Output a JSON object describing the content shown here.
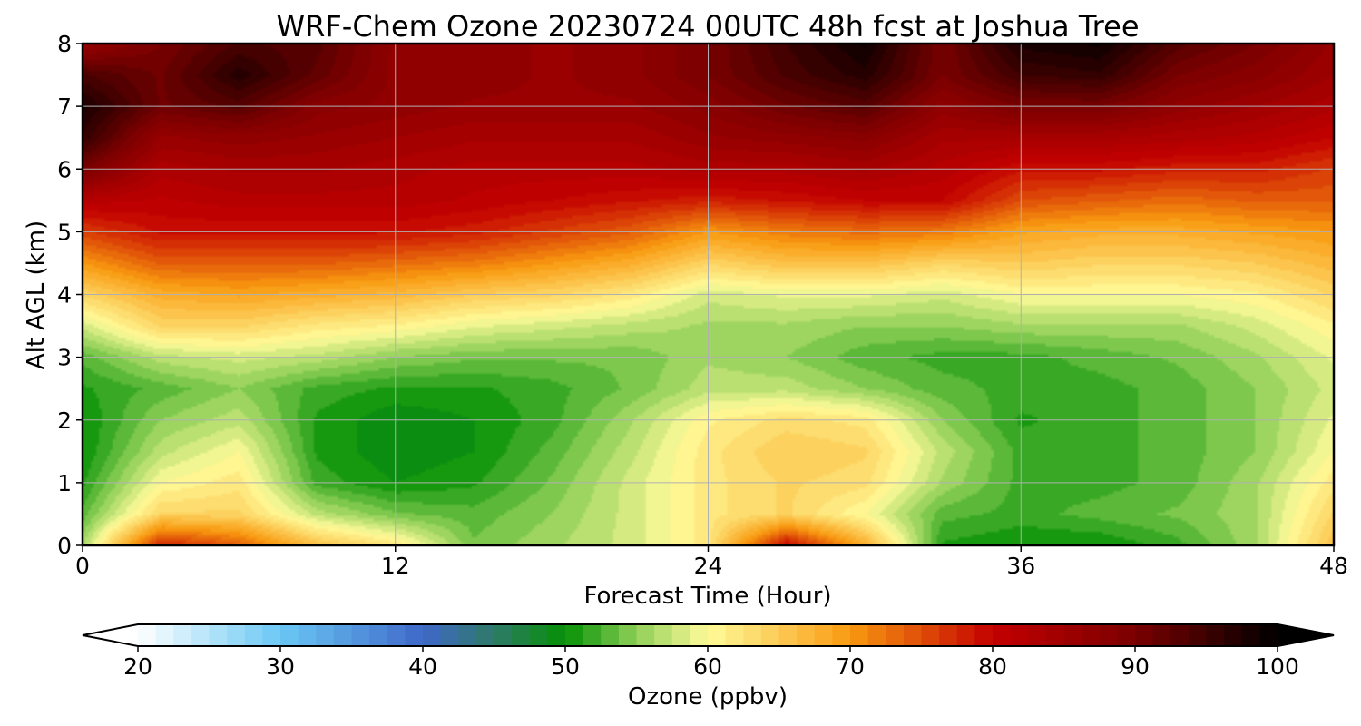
{
  "chart_data": {
    "type": "heatmap",
    "title": "WRF-Chem Ozone  20230724 00UTC 48h fcst at Joshua Tree",
    "xlabel": "Forecast Time (Hour)",
    "ylabel": "Alt AGL (km)",
    "xlim": [
      0,
      48
    ],
    "ylim": [
      0,
      8
    ],
    "xticks": [
      0,
      12,
      24,
      36,
      48
    ],
    "yticks": [
      0,
      1,
      2,
      3,
      4,
      5,
      6,
      7,
      8
    ],
    "grid": true,
    "colorbar": {
      "label": "Ozone  (ppbv)",
      "range": [
        20,
        100
      ],
      "ticks": [
        20,
        30,
        40,
        50,
        60,
        70,
        80,
        90,
        100
      ],
      "extend": "both",
      "stops": [
        {
          "v": 20,
          "c": "#ffffff"
        },
        {
          "v": 30,
          "c": "#6ac8f5"
        },
        {
          "v": 40,
          "c": "#3f68c8"
        },
        {
          "v": 45,
          "c": "#2f7a68"
        },
        {
          "v": 50,
          "c": "#059005"
        },
        {
          "v": 55,
          "c": "#8fd058"
        },
        {
          "v": 60,
          "c": "#fffb9a"
        },
        {
          "v": 70,
          "c": "#f99a10"
        },
        {
          "v": 80,
          "c": "#c40000"
        },
        {
          "v": 90,
          "c": "#7a0000"
        },
        {
          "v": 100,
          "c": "#000000"
        }
      ],
      "under_color": "#ffffff",
      "over_color": "#000000"
    },
    "x": [
      0,
      3,
      6,
      9,
      12,
      15,
      18,
      21,
      24,
      27,
      30,
      33,
      36,
      39,
      42,
      45,
      48
    ],
    "y": [
      0,
      0.5,
      1,
      1.5,
      2,
      2.5,
      3,
      3.5,
      4,
      4.5,
      5,
      5.5,
      6,
      6.5,
      7,
      7.5,
      8
    ],
    "z": [
      [
        56,
        78,
        74,
        66,
        62,
        54,
        56,
        58,
        62,
        80,
        68,
        51,
        50,
        50,
        52,
        56,
        66
      ],
      [
        53,
        64,
        64,
        57,
        54,
        53,
        55,
        58,
        62,
        64,
        60,
        53,
        52,
        53,
        54,
        56,
        64
      ],
      [
        51,
        60,
        62,
        52,
        50,
        51,
        54,
        58,
        62,
        64,
        63,
        56,
        52,
        52,
        53,
        56,
        62
      ],
      [
        50,
        57,
        60,
        51,
        49,
        50,
        53,
        57,
        62,
        65,
        64,
        57,
        52,
        52,
        53,
        55,
        60
      ],
      [
        50,
        55,
        57,
        51,
        49,
        50,
        52,
        56,
        61,
        63,
        62,
        55,
        51,
        52,
        53,
        55,
        59
      ],
      [
        51,
        53,
        55,
        52,
        51,
        51,
        52,
        54,
        57,
        57,
        55,
        53,
        52,
        52,
        53,
        55,
        58
      ],
      [
        53,
        57,
        58,
        57,
        55,
        54,
        54,
        54,
        56,
        55,
        53,
        52,
        52,
        53,
        54,
        56,
        59
      ],
      [
        58,
        64,
        64,
        62,
        61,
        59,
        58,
        57,
        56,
        56,
        55,
        55,
        56,
        56,
        56,
        58,
        61
      ],
      [
        64,
        68,
        69,
        68,
        67,
        65,
        64,
        62,
        58,
        59,
        59,
        58,
        60,
        60,
        60,
        61,
        64
      ],
      [
        70,
        74,
        74,
        74,
        73,
        72,
        70,
        68,
        64,
        66,
        66,
        64,
        65,
        64,
        64,
        65,
        67
      ],
      [
        76,
        79,
        79,
        79,
        79,
        78,
        76,
        74,
        70,
        72,
        73,
        72,
        69,
        68,
        68,
        69,
        70
      ],
      [
        82,
        81,
        82,
        82,
        82,
        81,
        80,
        79,
        78,
        79,
        80,
        80,
        75,
        74,
        73,
        74,
        74
      ],
      [
        90,
        83,
        84,
        84,
        83,
        82,
        82,
        82,
        83,
        83,
        84,
        82,
        79,
        79,
        78,
        78,
        76
      ],
      [
        96,
        86,
        87,
        86,
        85,
        84,
        84,
        84,
        86,
        87,
        88,
        84,
        84,
        84,
        83,
        82,
        80
      ],
      [
        98,
        91,
        93,
        88,
        87,
        86,
        86,
        86,
        88,
        91,
        93,
        87,
        90,
        90,
        87,
        85,
        83
      ],
      [
        94,
        91,
        97,
        92,
        87,
        87,
        86,
        87,
        90,
        94,
        97,
        90,
        95,
        96,
        90,
        88,
        85
      ],
      [
        86,
        90,
        94,
        93,
        87,
        87,
        86,
        87,
        90,
        95,
        99,
        90,
        98,
        99,
        93,
        90,
        86
      ]
    ]
  }
}
